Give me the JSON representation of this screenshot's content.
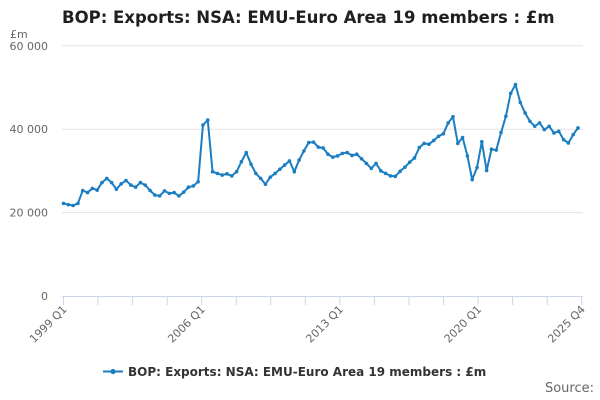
{
  "title": "BOP: Exports: NSA: EMU-Euro Area 19 members : £m",
  "y_axis": {
    "unit": "£m",
    "tick_values": [
      0,
      20000,
      40000,
      60000
    ],
    "tick_labels": [
      "0",
      "20 000",
      "40 000",
      "60 000"
    ],
    "max": 60000
  },
  "x_axis": {
    "tick_count": 16,
    "labels": [
      {
        "text": "1999 Q1",
        "tick": 0
      },
      {
        "text": "2006 Q1",
        "tick": 4
      },
      {
        "text": "2013 Q1",
        "tick": 8
      },
      {
        "text": "2020 Q1",
        "tick": 12
      },
      {
        "text": "2025 Q4",
        "tick": 15
      }
    ]
  },
  "legend": {
    "label": "BOP: Exports: NSA: EMU-Euro Area 19 members : £m"
  },
  "source": {
    "label": "Source:"
  },
  "colors": {
    "line": "#1b7ec2",
    "grid": "#e3e3e3",
    "axis": "#ccd6eb",
    "muted_text": "#666666",
    "title_text": "#1f1f1f",
    "legend_text": "#333333"
  },
  "chart_data": {
    "type": "line",
    "title": "BOP: Exports: NSA: EMU-Euro Area 19 members : £m",
    "ylabel": "£m",
    "ylim": [
      0,
      60000
    ],
    "grid": "horizontal-only",
    "legend_position": "bottom",
    "frequency": "quarterly",
    "x_start": "1999 Q1",
    "x_end": "2025 Q4",
    "series_name": "BOP: Exports: NSA: EMU-Euro Area 19 members : £m",
    "values": [
      22200,
      21900,
      21700,
      22200,
      25300,
      24800,
      25800,
      25400,
      27200,
      28200,
      27200,
      25600,
      26900,
      27700,
      26600,
      26100,
      27200,
      26600,
      25300,
      24200,
      24000,
      25200,
      24600,
      24800,
      24000,
      24900,
      26100,
      26400,
      27400,
      41000,
      42200,
      29800,
      29400,
      29000,
      29300,
      28800,
      29800,
      32200,
      34400,
      31600,
      29400,
      28200,
      26800,
      28500,
      29400,
      30400,
      31400,
      32400,
      29800,
      32600,
      34800,
      36800,
      36900,
      35700,
      35500,
      34000,
      33300,
      33600,
      34200,
      34400,
      33700,
      34000,
      32900,
      31800,
      30600,
      31800,
      30000,
      29400,
      28800,
      28700,
      29900,
      30900,
      32100,
      33100,
      35600,
      36600,
      36400,
      37300,
      38300,
      38900,
      41500,
      43000,
      36600,
      38000,
      33600,
      27900,
      30800,
      37000,
      30100,
      35200,
      35000,
      39200,
      43100,
      48600,
      50700,
      46400,
      43900,
      41900,
      40700,
      41500,
      39900,
      40700,
      39100,
      39500,
      37500,
      36700,
      38700,
      40300
    ]
  }
}
